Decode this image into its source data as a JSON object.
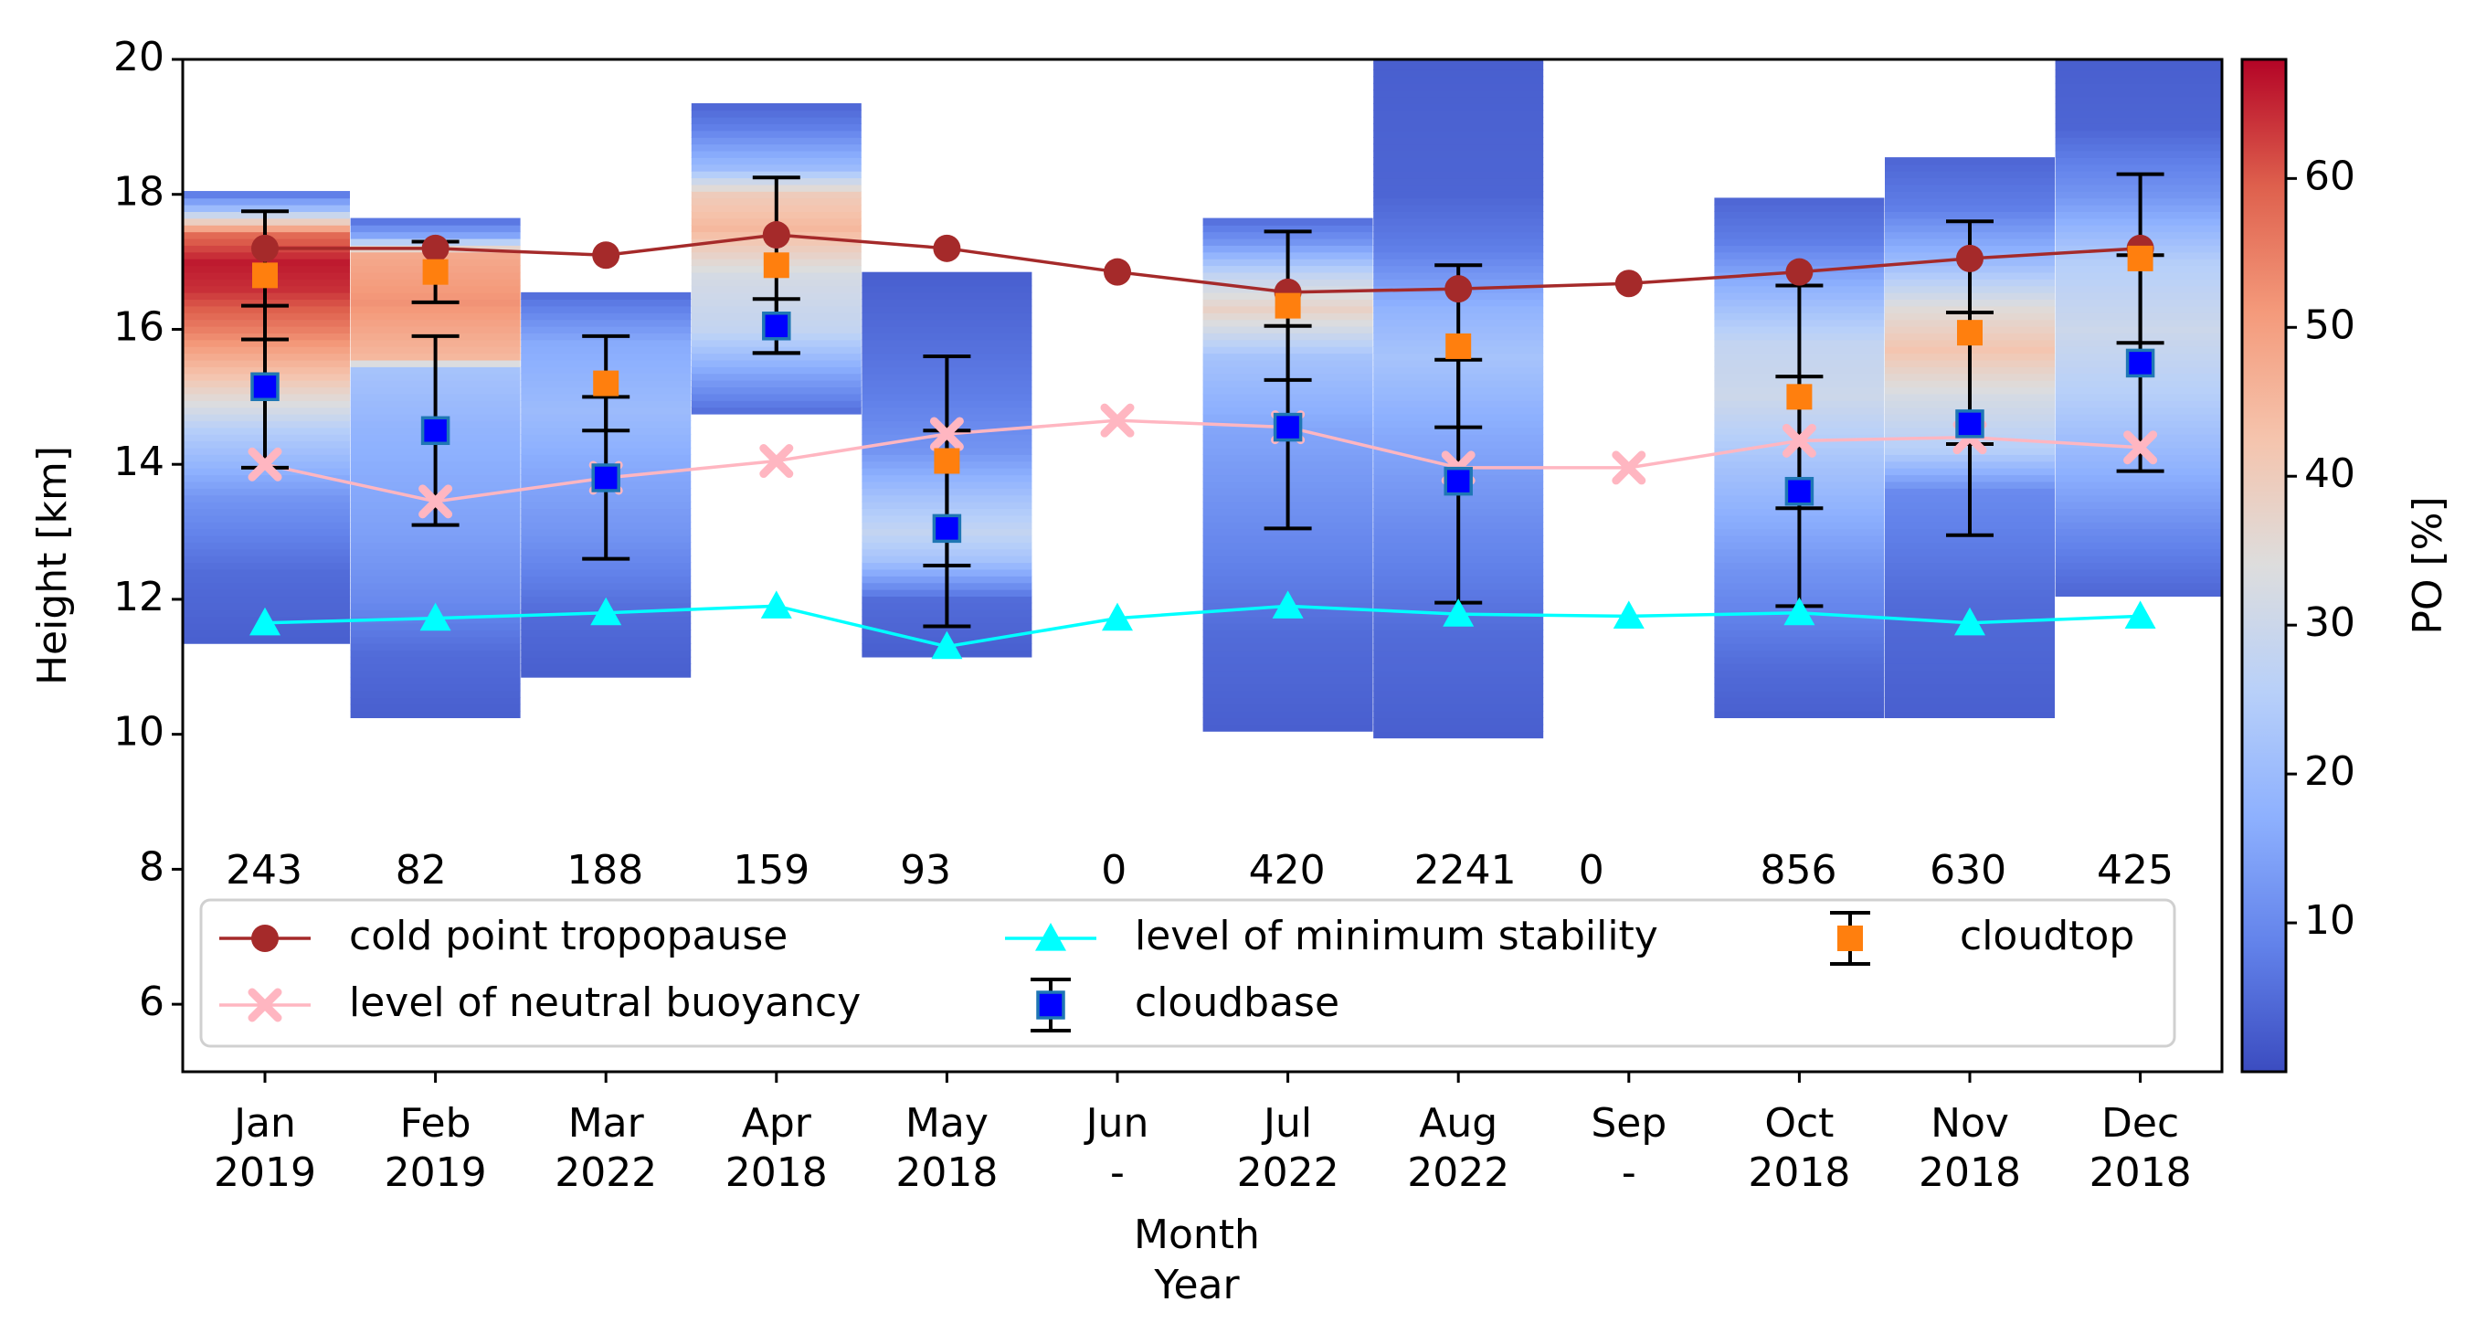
{
  "chart_data": {
    "type": "line",
    "xlabel_lines": [
      "Month",
      "Year"
    ],
    "ylabel": "Height [km]",
    "ylim": [
      5,
      20
    ],
    "yticks": [
      6,
      8,
      10,
      12,
      14,
      16,
      18,
      20
    ],
    "grid": false,
    "categories": [
      {
        "month": "Jan",
        "year": "2019"
      },
      {
        "month": "Feb",
        "year": "2019"
      },
      {
        "month": "Mar",
        "year": "2022"
      },
      {
        "month": "Apr",
        "year": "2018"
      },
      {
        "month": "May",
        "year": "2018"
      },
      {
        "month": "Jun",
        "year": "-"
      },
      {
        "month": "Jul",
        "year": "2022"
      },
      {
        "month": "Aug",
        "year": "2022"
      },
      {
        "month": "Sep",
        "year": "-"
      },
      {
        "month": "Oct",
        "year": "2018"
      },
      {
        "month": "Nov",
        "year": "2018"
      },
      {
        "month": "Dec",
        "year": "2018"
      }
    ],
    "counts": [
      "243",
      "82",
      "188",
      "159",
      "93",
      "0",
      "420",
      "2241",
      "0",
      "856",
      "630",
      "425"
    ],
    "count_offsets_km": [
      -0.05,
      -0.85,
      -0.05,
      -0.3,
      -1.25,
      -0.2,
      -0.05,
      0.4,
      -2.2,
      -0.05,
      -0.1,
      -0.3
    ],
    "colorbar": {
      "label": "PO [%]",
      "range": [
        0,
        68
      ],
      "ticks": [
        10,
        20,
        30,
        40,
        50,
        60
      ],
      "colormap": "coolwarm"
    },
    "po_profiles": [
      {
        "bottom": 11.35,
        "top": 18.05,
        "stops": [
          [
            11.35,
            3
          ],
          [
            12.4,
            5
          ],
          [
            13.5,
            12
          ],
          [
            14.5,
            25
          ],
          [
            15.3,
            42
          ],
          [
            16.0,
            55
          ],
          [
            16.6,
            64
          ],
          [
            17.0,
            66
          ],
          [
            17.4,
            58
          ],
          [
            17.8,
            20
          ],
          [
            18.05,
            5
          ]
        ]
      },
      {
        "bottom": 10.25,
        "top": 17.65,
        "stops": [
          [
            10.25,
            3
          ],
          [
            11.2,
            5
          ],
          [
            12.0,
            10
          ],
          [
            13.0,
            14
          ],
          [
            14.5,
            18
          ],
          [
            15.4,
            22
          ],
          [
            15.6,
            45
          ],
          [
            16.4,
            52
          ],
          [
            17.1,
            48
          ],
          [
            17.4,
            15
          ],
          [
            17.65,
            5
          ]
        ]
      },
      {
        "bottom": 10.85,
        "top": 16.55,
        "stops": [
          [
            10.85,
            3
          ],
          [
            11.8,
            5
          ],
          [
            13.0,
            12
          ],
          [
            14.0,
            16
          ],
          [
            14.8,
            20
          ],
          [
            15.8,
            16
          ],
          [
            16.55,
            5
          ]
        ]
      },
      {
        "bottom": 14.75,
        "top": 19.35,
        "stops": [
          [
            14.75,
            5
          ],
          [
            15.3,
            14
          ],
          [
            16.0,
            28
          ],
          [
            16.8,
            32
          ],
          [
            17.5,
            45
          ],
          [
            18.0,
            40
          ],
          [
            18.4,
            20
          ],
          [
            19.0,
            8
          ],
          [
            19.35,
            4
          ]
        ]
      },
      {
        "bottom": 11.15,
        "top": 16.85,
        "stops": [
          [
            11.15,
            3
          ],
          [
            12.0,
            5
          ],
          [
            12.6,
            22
          ],
          [
            13.0,
            28
          ],
          [
            13.5,
            22
          ],
          [
            14.2,
            12
          ],
          [
            15.0,
            8
          ],
          [
            16.0,
            5
          ],
          [
            16.85,
            3
          ]
        ]
      },
      {
        "bottom": 10.05,
        "top": 17.65,
        "stops": [
          [
            10.05,
            3
          ],
          [
            11.5,
            5
          ],
          [
            13.0,
            10
          ],
          [
            14.5,
            15
          ],
          [
            15.6,
            22
          ],
          [
            16.3,
            38
          ],
          [
            16.8,
            28
          ],
          [
            17.3,
            12
          ],
          [
            17.65,
            5
          ]
        ]
      },
      {
        "bottom": 9.95,
        "top": 20.0,
        "stops": [
          [
            9.95,
            3
          ],
          [
            11.5,
            5
          ],
          [
            13.0,
            10
          ],
          [
            14.5,
            16
          ],
          [
            15.6,
            22
          ],
          [
            16.3,
            18
          ],
          [
            17.2,
            8
          ],
          [
            18.0,
            4
          ],
          [
            20.0,
            3
          ]
        ]
      },
      {
        "bottom": 10.25,
        "top": 17.95,
        "stops": [
          [
            10.25,
            3
          ],
          [
            11.0,
            5
          ],
          [
            12.5,
            12
          ],
          [
            14.0,
            22
          ],
          [
            15.0,
            30
          ],
          [
            15.8,
            28
          ],
          [
            16.6,
            18
          ],
          [
            17.3,
            8
          ],
          [
            17.95,
            4
          ]
        ]
      },
      {
        "bottom": 10.25,
        "top": 18.55,
        "stops": [
          [
            10.25,
            3
          ],
          [
            12.0,
            5
          ],
          [
            13.6,
            10
          ],
          [
            14.2,
            25
          ],
          [
            15.0,
            32
          ],
          [
            15.7,
            42
          ],
          [
            16.3,
            35
          ],
          [
            17.0,
            20
          ],
          [
            17.8,
            8
          ],
          [
            18.55,
            4
          ]
        ]
      },
      {
        "bottom": 12.05,
        "top": 20.0,
        "stops": [
          [
            12.05,
            4
          ],
          [
            13.0,
            10
          ],
          [
            14.0,
            18
          ],
          [
            15.0,
            25
          ],
          [
            16.0,
            30
          ],
          [
            17.0,
            25
          ],
          [
            18.0,
            12
          ],
          [
            19.0,
            4
          ],
          [
            20.0,
            3
          ]
        ]
      }
    ],
    "po_profile_positions": [
      0,
      1,
      2,
      3,
      4,
      6,
      7,
      9,
      10,
      11
    ],
    "series": [
      {
        "name": "cold point tropopause",
        "color": "#a52a2a",
        "marker": "circle",
        "values": [
          17.2,
          17.2,
          17.1,
          17.4,
          17.2,
          16.85,
          16.55,
          16.6,
          16.68,
          16.85,
          17.05,
          17.2
        ]
      },
      {
        "name": "level of neutral buoyancy",
        "color": "#ffb6c1",
        "marker": "x",
        "values": [
          14.0,
          13.45,
          13.8,
          14.05,
          14.45,
          14.65,
          14.55,
          13.95,
          13.95,
          14.35,
          14.4,
          14.25
        ]
      },
      {
        "name": "level of minimum stability",
        "color": "#00ffff",
        "marker": "triangle",
        "values": [
          11.65,
          11.72,
          11.8,
          11.9,
          11.3,
          11.72,
          11.9,
          11.78,
          11.75,
          11.8,
          11.65,
          11.75
        ]
      },
      {
        "name": "cloudbase",
        "color": "#0000ff",
        "edge_color": "#1f77b4",
        "marker": "square",
        "values": [
          15.15,
          14.5,
          13.8,
          16.05,
          13.05,
          null,
          14.55,
          13.75,
          null,
          13.6,
          14.6,
          15.5
        ],
        "errors": [
          1.2,
          1.4,
          1.2,
          0.4,
          1.45,
          null,
          1.5,
          1.8,
          null,
          1.7,
          1.65,
          1.6
        ]
      },
      {
        "name": "cloudtop",
        "color": "#ff7f0e",
        "marker": "square",
        "values": [
          16.8,
          16.85,
          15.2,
          16.95,
          14.05,
          null,
          16.35,
          15.75,
          null,
          15.0,
          15.95,
          17.05
        ],
        "errors": [
          0.95,
          0.45,
          0.7,
          1.3,
          1.55,
          null,
          1.1,
          1.2,
          null,
          1.65,
          1.65,
          1.25
        ]
      }
    ]
  }
}
